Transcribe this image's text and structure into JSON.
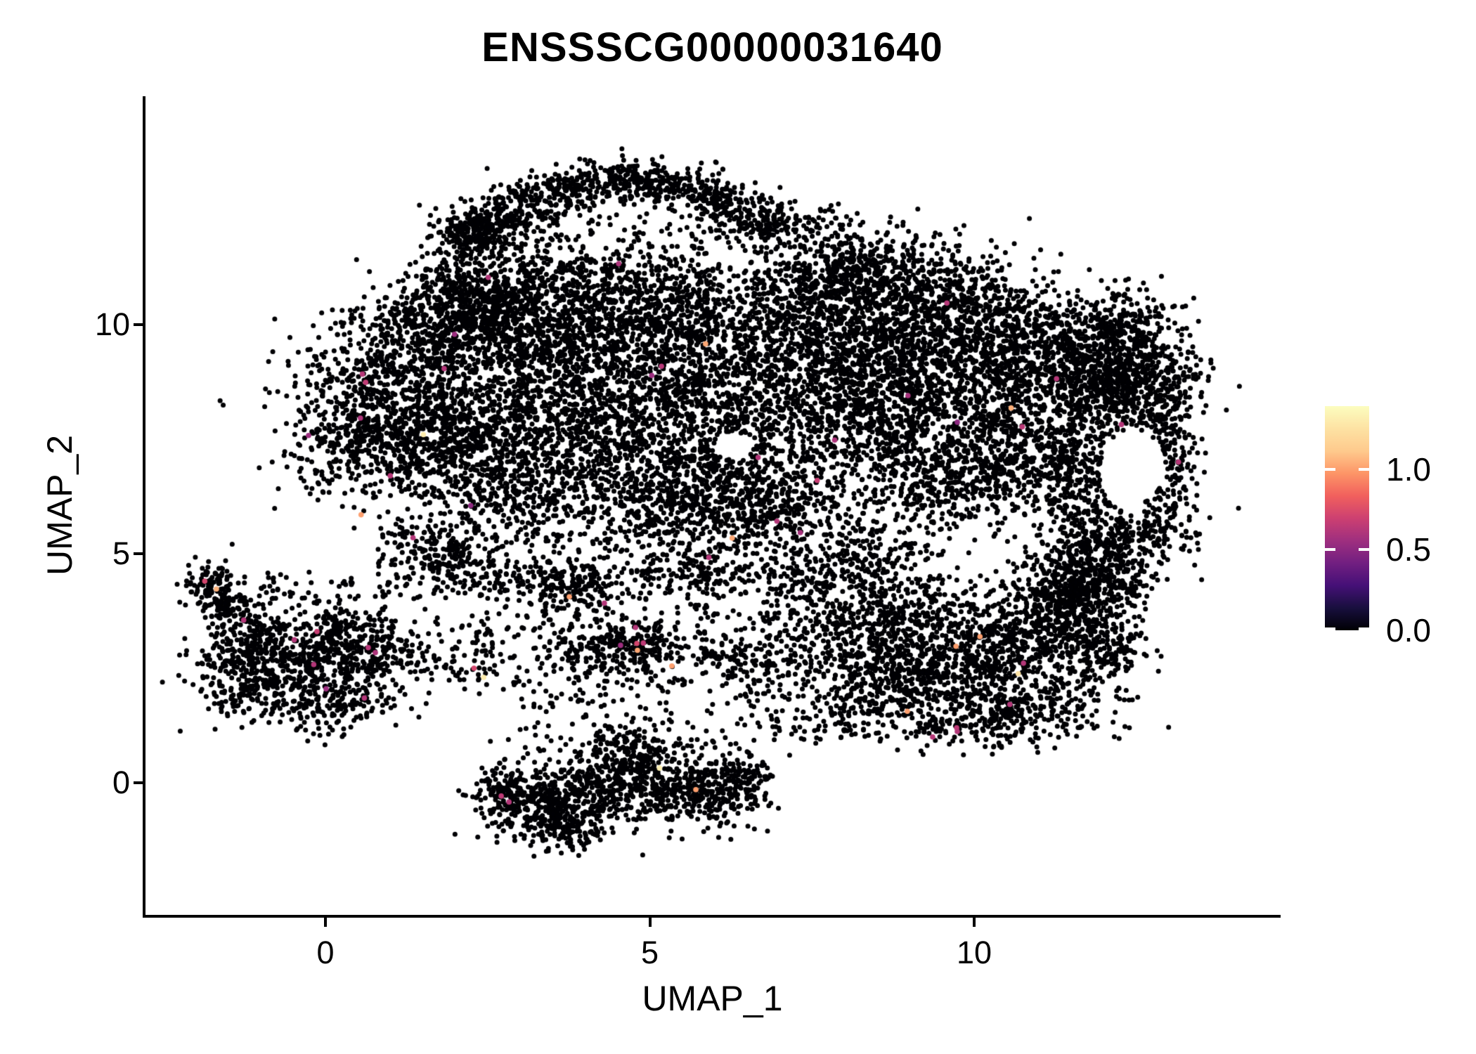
{
  "chart_data": {
    "type": "scatter",
    "title": "ENSSSCG00000031640",
    "xlabel": "UMAP_1",
    "ylabel": "UMAP_2",
    "x_tick_labels": [
      "0",
      "5",
      "10"
    ],
    "x_tick_values": [
      0,
      5,
      10
    ],
    "y_tick_labels": [
      "0",
      "5",
      "10"
    ],
    "y_tick_values": [
      0,
      5,
      10
    ],
    "xlim": [
      -2.8,
      14.7
    ],
    "ylim": [
      -3.0,
      15.0
    ],
    "grid": false,
    "legend_position": "right",
    "point_color": "#000004",
    "background": "#ffffff",
    "colorbar": {
      "tick_labels": [
        "0.0",
        "0.5",
        "1.0"
      ],
      "tick_values": [
        0,
        0.5,
        1.0
      ],
      "vmin": 0,
      "vmax": 1.39,
      "colormap": "magma",
      "stops": [
        [
          0.0,
          "#000004"
        ],
        [
          0.1,
          "#180f3e"
        ],
        [
          0.2,
          "#451077"
        ],
        [
          0.3,
          "#721f81"
        ],
        [
          0.4,
          "#9f2f7f"
        ],
        [
          0.5,
          "#cd4071"
        ],
        [
          0.6,
          "#f1605d"
        ],
        [
          0.7,
          "#fd9567"
        ],
        [
          0.8,
          "#feca8d"
        ],
        [
          0.9,
          "#fde2a3"
        ],
        [
          1.0,
          "#fcfdbf"
        ]
      ]
    },
    "clusters": [
      [
        "g",
        2.2,
        11.95,
        0.3,
        0.25,
        120
      ],
      [
        "g",
        2.9,
        12.5,
        0.35,
        0.25,
        140
      ],
      [
        "g",
        3.7,
        12.95,
        0.4,
        0.22,
        150
      ],
      [
        "g",
        4.6,
        13.2,
        0.45,
        0.22,
        160
      ],
      [
        "g",
        5.5,
        13.0,
        0.4,
        0.22,
        140
      ],
      [
        "g",
        6.2,
        12.6,
        0.35,
        0.22,
        120
      ],
      [
        "g",
        6.7,
        12.15,
        0.3,
        0.2,
        100
      ],
      [
        "g",
        2.35,
        12.1,
        0.3,
        0.3,
        110
      ],
      [
        "e",
        4.4,
        12.05,
        1.9,
        1.05,
        130
      ],
      [
        "g",
        7.2,
        12.1,
        0.4,
        0.3,
        60
      ],
      [
        "u",
        6.8,
        11.6,
        8.0,
        12.7,
        40
      ],
      [
        "g",
        0.9,
        8.6,
        0.75,
        0.85,
        520
      ],
      [
        "g",
        1.7,
        9.9,
        0.65,
        0.65,
        420
      ],
      [
        "g",
        0.35,
        7.5,
        0.5,
        0.65,
        280
      ],
      [
        "g",
        2.5,
        10.9,
        0.55,
        0.5,
        280
      ],
      [
        "g",
        1.6,
        7.4,
        0.6,
        0.55,
        280
      ],
      [
        "g",
        2.4,
        10.1,
        0.5,
        0.5,
        250
      ],
      [
        "g",
        3.6,
        10.4,
        0.85,
        0.75,
        550
      ],
      [
        "g",
        4.9,
        9.6,
        0.95,
        0.85,
        600
      ],
      [
        "g",
        5.5,
        10.7,
        0.8,
        0.5,
        300
      ],
      [
        "g",
        3.3,
        8.7,
        0.85,
        0.8,
        500
      ],
      [
        "g",
        5.8,
        8.5,
        0.95,
        0.85,
        600
      ],
      [
        "g",
        4.4,
        7.3,
        0.95,
        0.75,
        500
      ],
      [
        "g",
        6.4,
        7.0,
        0.85,
        0.65,
        420
      ],
      [
        "g",
        2.9,
        6.3,
        0.75,
        0.55,
        320
      ],
      [
        "g",
        5.3,
        6.0,
        0.95,
        0.5,
        350
      ],
      [
        "g",
        7.2,
        9.7,
        0.8,
        0.85,
        520
      ],
      [
        "g",
        7.8,
        10.8,
        0.55,
        0.55,
        220
      ],
      [
        "g",
        6.9,
        6.0,
        0.7,
        0.45,
        260
      ],
      [
        "g",
        1.7,
        5.1,
        0.4,
        0.35,
        140
      ],
      [
        "g",
        2.2,
        7.4,
        0.6,
        0.6,
        300
      ],
      [
        "e",
        4.8,
        8.6,
        3.5,
        3.0,
        450
      ],
      [
        "g",
        8.6,
        9.6,
        0.85,
        0.95,
        650
      ],
      [
        "g",
        8.3,
        8.0,
        0.8,
        0.8,
        520
      ],
      [
        "g",
        9.8,
        8.6,
        0.9,
        0.95,
        600
      ],
      [
        "g",
        9.6,
        10.5,
        0.75,
        0.6,
        400
      ],
      [
        "g",
        11.0,
        9.7,
        0.75,
        0.6,
        400
      ],
      [
        "g",
        11.9,
        8.9,
        0.65,
        0.65,
        380
      ],
      [
        "g",
        10.7,
        7.3,
        0.65,
        0.75,
        380
      ],
      [
        "g",
        9.6,
        6.5,
        0.75,
        0.55,
        320
      ],
      [
        "g",
        8.4,
        11.2,
        0.65,
        0.45,
        280
      ],
      [
        "g",
        12.5,
        9.0,
        0.5,
        0.5,
        260
      ],
      [
        "g",
        12.4,
        8.3,
        0.55,
        0.4,
        220
      ],
      [
        "g",
        13.0,
        7.1,
        0.22,
        0.75,
        220
      ],
      [
        "g",
        12.4,
        5.5,
        0.55,
        0.35,
        200
      ],
      [
        "g",
        11.6,
        6.7,
        0.3,
        0.65,
        200
      ],
      [
        "g",
        11.9,
        5.0,
        0.5,
        0.4,
        200
      ],
      [
        "g",
        11.5,
        4.45,
        0.4,
        0.5,
        180
      ],
      [
        "g",
        12.2,
        10.0,
        0.4,
        0.4,
        180
      ],
      [
        "e",
        10.3,
        8.3,
        2.6,
        2.4,
        380
      ],
      [
        "u",
        0.8,
        4.0,
        8.6,
        5.5,
        380
      ],
      [
        "g",
        3.3,
        4.45,
        0.85,
        0.18,
        150
      ],
      [
        "g",
        5.8,
        4.6,
        0.7,
        0.2,
        110
      ],
      [
        "g",
        7.7,
        4.5,
        0.5,
        0.45,
        130
      ],
      [
        "g",
        8.7,
        4.9,
        0.45,
        0.4,
        130
      ],
      [
        "u",
        2.0,
        1.9,
        9.0,
        3.9,
        300
      ],
      [
        "g",
        4.85,
        3.0,
        0.45,
        0.35,
        190
      ],
      [
        "g",
        6.6,
        2.7,
        0.5,
        0.35,
        130
      ],
      [
        "g",
        4.1,
        2.8,
        0.4,
        0.3,
        90
      ],
      [
        "g",
        7.6,
        3.3,
        0.4,
        0.35,
        100
      ],
      [
        "g",
        3.8,
        4.05,
        0.3,
        0.25,
        80
      ],
      [
        "g",
        9.7,
        2.6,
        0.85,
        0.65,
        500
      ],
      [
        "g",
        10.9,
        3.3,
        0.65,
        0.55,
        320
      ],
      [
        "g",
        8.6,
        2.1,
        0.55,
        0.45,
        220
      ],
      [
        "g",
        10.8,
        1.8,
        0.65,
        0.4,
        230
      ],
      [
        "g",
        11.9,
        3.0,
        0.45,
        0.45,
        180
      ],
      [
        "g",
        9.0,
        3.5,
        0.55,
        0.45,
        220
      ],
      [
        "g",
        11.4,
        4.0,
        0.4,
        0.4,
        160
      ],
      [
        "g",
        12.1,
        4.3,
        0.3,
        0.35,
        120
      ],
      [
        "g",
        9.9,
        1.2,
        0.7,
        0.25,
        140
      ],
      [
        "u",
        7.9,
        1.0,
        12.4,
        4.4,
        240
      ],
      [
        "u",
        6.8,
        0.9,
        8.2,
        2.0,
        70
      ],
      [
        "g",
        -0.5,
        2.7,
        0.65,
        0.55,
        450
      ],
      [
        "g",
        -1.2,
        3.3,
        0.33,
        0.42,
        150
      ],
      [
        "g",
        -1.8,
        4.3,
        0.2,
        0.26,
        100
      ],
      [
        "g",
        -1.55,
        3.85,
        0.17,
        0.22,
        60
      ],
      [
        "g",
        0.3,
        3.2,
        0.42,
        0.38,
        150
      ],
      [
        "g",
        0.1,
        1.85,
        0.5,
        0.38,
        180
      ],
      [
        "g",
        -1.25,
        2.2,
        0.38,
        0.38,
        150
      ],
      [
        "g",
        0.85,
        2.7,
        0.4,
        0.4,
        110
      ],
      [
        "u",
        1.1,
        2.2,
        2.6,
        3.6,
        80
      ],
      [
        "u",
        -1.0,
        3.9,
        0.9,
        4.6,
        40
      ],
      [
        "g",
        3.35,
        -0.55,
        0.45,
        0.4,
        270
      ],
      [
        "g",
        4.35,
        -0.05,
        0.55,
        0.38,
        250
      ],
      [
        "g",
        5.2,
        -0.1,
        0.5,
        0.33,
        210
      ],
      [
        "g",
        5.95,
        -0.15,
        0.45,
        0.33,
        200
      ],
      [
        "g",
        4.65,
        0.75,
        0.45,
        0.28,
        150
      ],
      [
        "g",
        2.75,
        -0.2,
        0.3,
        0.3,
        120
      ],
      [
        "g",
        6.4,
        0.1,
        0.3,
        0.28,
        90
      ],
      [
        "g",
        3.8,
        -1.0,
        0.3,
        0.24,
        90
      ],
      [
        "u",
        2.5,
        -1.25,
        6.7,
        1.05,
        110
      ],
      [
        "u",
        3.0,
        1.1,
        7.0,
        1.95,
        70
      ]
    ],
    "holes": [
      [
        12.45,
        6.9,
        0.5,
        0.8
      ],
      [
        6.3,
        7.35,
        0.3,
        0.3
      ]
    ],
    "highlights": [
      [
        2.51,
        11.03,
        0.62
      ],
      [
        4.52,
        11.33,
        0.6
      ],
      [
        1.99,
        9.79,
        0.55
      ],
      [
        1.83,
        9.04,
        0.62
      ],
      [
        0.57,
        8.92,
        0.63
      ],
      [
        0.62,
        8.74,
        0.66
      ],
      [
        0.54,
        7.96,
        0.6
      ],
      [
        -0.26,
        7.58,
        0.55
      ],
      [
        1.51,
        7.6,
        1.3
      ],
      [
        1.0,
        6.7,
        0.63
      ],
      [
        2.24,
        6.05,
        0.5
      ],
      [
        1.35,
        5.35,
        0.62
      ],
      [
        5.86,
        9.58,
        1.02
      ],
      [
        5.18,
        9.09,
        0.63
      ],
      [
        5.03,
        8.89,
        0.55
      ],
      [
        6.67,
        7.1,
        0.62
      ],
      [
        7.85,
        7.48,
        0.6
      ],
      [
        7.58,
        6.6,
        0.68
      ],
      [
        6.96,
        5.71,
        0.62
      ],
      [
        7.32,
        5.46,
        0.58
      ],
      [
        6.27,
        5.34,
        1.02
      ],
      [
        5.91,
        4.92,
        0.62
      ],
      [
        3.76,
        4.06,
        1.0
      ],
      [
        4.3,
        3.92,
        0.62
      ],
      [
        9.58,
        10.47,
        0.63
      ],
      [
        8.98,
        8.45,
        0.58
      ],
      [
        11.27,
        8.82,
        0.63
      ],
      [
        10.57,
        8.18,
        1.04
      ],
      [
        9.74,
        7.87,
        0.5
      ],
      [
        10.74,
        7.77,
        0.64
      ],
      [
        12.27,
        7.82,
        0.62
      ],
      [
        13.15,
        7.0,
        0.63
      ],
      [
        4.78,
        3.39,
        0.62
      ],
      [
        4.55,
        3.0,
        0.55
      ],
      [
        4.8,
        3.04,
        0.72
      ],
      [
        4.9,
        3.05,
        0.65
      ],
      [
        4.81,
        2.89,
        1.02
      ],
      [
        5.34,
        2.55,
        1.0
      ],
      [
        2.29,
        2.5,
        0.72
      ],
      [
        2.44,
        2.3,
        1.3
      ],
      [
        10.09,
        3.19,
        1.0
      ],
      [
        9.72,
        2.98,
        1.0
      ],
      [
        10.76,
        2.61,
        0.62
      ],
      [
        10.68,
        2.38,
        1.25
      ],
      [
        10.55,
        1.71,
        0.62
      ],
      [
        9.73,
        1.2,
        0.65
      ],
      [
        9.74,
        1.12,
        0.62
      ],
      [
        9.36,
        1.0,
        0.63
      ],
      [
        8.97,
        1.56,
        1.0
      ],
      [
        -1.86,
        4.4,
        0.72
      ],
      [
        -1.68,
        4.23,
        1.05
      ],
      [
        -1.26,
        3.55,
        0.62
      ],
      [
        -0.13,
        3.3,
        0.68
      ],
      [
        -0.48,
        3.12,
        0.62
      ],
      [
        0.66,
        2.95,
        0.63
      ],
      [
        0.77,
        2.84,
        0.6
      ],
      [
        -0.18,
        2.58,
        0.62
      ],
      [
        0.01,
        2.05,
        0.55
      ],
      [
        0.6,
        1.85,
        0.62
      ],
      [
        0.55,
        5.85,
        1.0
      ],
      [
        2.71,
        -0.29,
        0.65
      ],
      [
        2.83,
        -0.42,
        0.62
      ],
      [
        5.71,
        -0.15,
        1.0
      ],
      [
        5.15,
        0.32,
        1.32
      ]
    ]
  }
}
